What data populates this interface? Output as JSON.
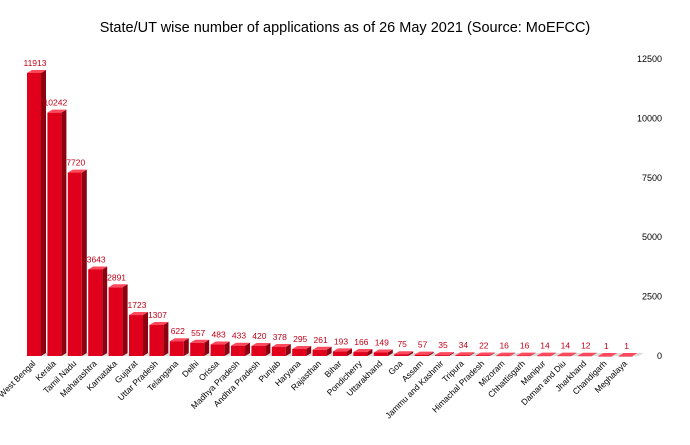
{
  "chart_data": {
    "type": "bar",
    "title": "State/UT wise number of applications as of 26 May 2021 (Source: MoEFCC)",
    "xlabel": "",
    "ylabel": "",
    "ylim": [
      0,
      12500
    ],
    "y_ticks": [
      "0",
      "2500",
      "5000",
      "7500",
      "10000",
      "12500"
    ],
    "y_axis_side": "right",
    "grid": false,
    "bar_color": "#e0001b",
    "bar_side_color": "#8c0010",
    "bar_top_color": "#ff4a5e",
    "label_color": "#c00018",
    "categories": [
      "West Bengal",
      "Kerala",
      "Tamil Nadu",
      "Maharashtra",
      "Karnataka",
      "Gujarat",
      "Uttar Pradesh",
      "Telangana",
      "Delhi",
      "Orissa",
      "Madhya Pradesh",
      "Andhra Pradesh",
      "Punjab",
      "Haryana",
      "Rajasthan",
      "Bihar",
      "Pondicherry",
      "Uttarakhand",
      "Goa",
      "Assam",
      "Jammu and Kashmir",
      "Tripura",
      "Himachal Pradesh",
      "Mizoram",
      "Chhattisgarh",
      "Manipur",
      "Daman and Diu",
      "Jharkhand",
      "Chandigarh",
      "Meghalaya"
    ],
    "values": [
      11913,
      10242,
      7720,
      3643,
      2891,
      1723,
      1307,
      622,
      557,
      483,
      433,
      420,
      378,
      295,
      261,
      193,
      166,
      149,
      75,
      57,
      35,
      34,
      22,
      16,
      16,
      14,
      14,
      12,
      1,
      1
    ]
  }
}
